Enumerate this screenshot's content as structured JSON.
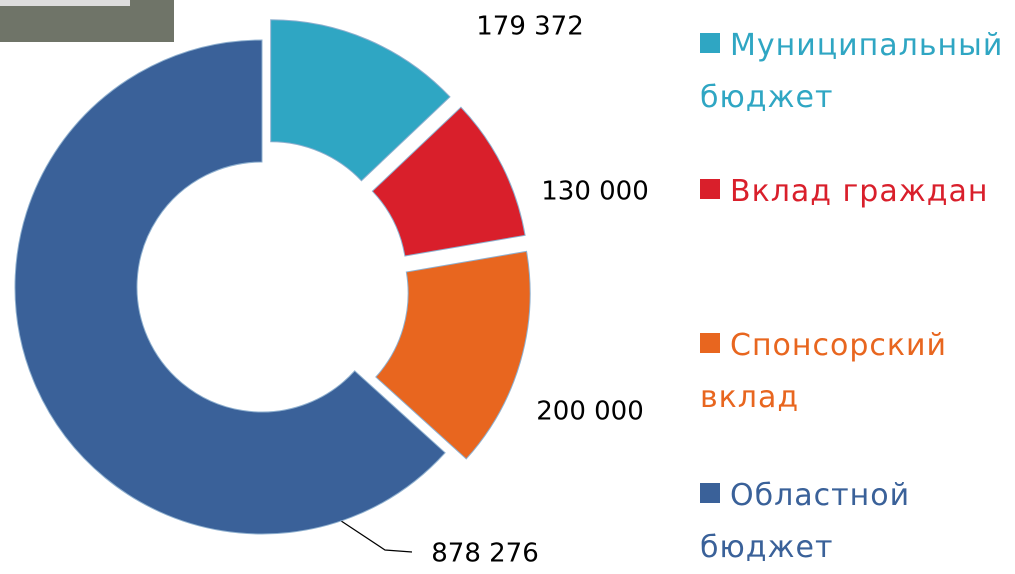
{
  "chart_data": {
    "type": "pie",
    "donut": true,
    "categories": [
      "Муниципальный бюджет",
      "Вклад граждан",
      "Спонсорский вклад",
      "Областной бюджет"
    ],
    "values": [
      179372,
      130000,
      200000,
      878276
    ],
    "value_labels": [
      "179 372",
      "130 000",
      "200 000",
      "878 276"
    ],
    "colors": [
      "#2fa6c3",
      "#d91f2b",
      "#e8661f",
      "#3a6199"
    ]
  }
}
